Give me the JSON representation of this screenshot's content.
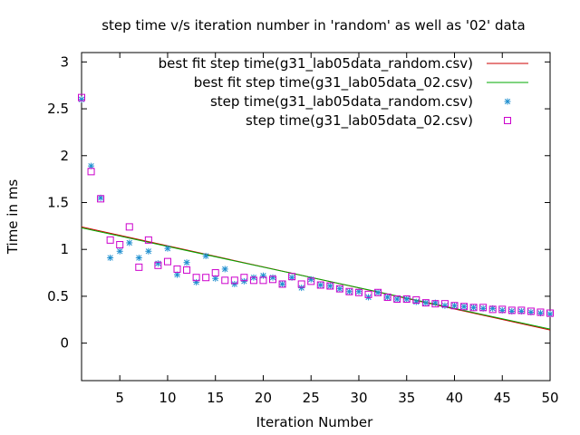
{
  "chart_data": {
    "type": "scatter",
    "title": "step time v/s iteration number in 'random' as well as '02' data",
    "xlabel": "Iteration Number",
    "ylabel": "Time in ms",
    "xlim": [
      1,
      50
    ],
    "ylim": [
      -0.4,
      3.1
    ],
    "xticks": [
      5,
      10,
      15,
      20,
      25,
      30,
      35,
      40,
      45,
      50
    ],
    "yticks": [
      0,
      0.5,
      1,
      1.5,
      2,
      2.5,
      3
    ],
    "xtick_labels": [
      "5",
      "10",
      "15",
      "20",
      "25",
      "30",
      "35",
      "40",
      "45",
      "50"
    ],
    "ytick_labels": [
      "0",
      "0.5",
      "1",
      "1.5",
      "2",
      "2.5",
      "3"
    ],
    "grid": false,
    "legend_position": "top-right",
    "series": [
      {
        "name": "best fit step time(g31_lab05data_random.csv)",
        "kind": "line",
        "color": "#cc0000",
        "x": [
          1,
          50
        ],
        "y": [
          1.24,
          0.14
        ]
      },
      {
        "name": "best fit step time(g31_lab05data_02.csv)",
        "kind": "line",
        "color": "#00aa00",
        "x": [
          1,
          50
        ],
        "y": [
          1.23,
          0.15
        ]
      },
      {
        "name": "step time(g31_lab05data_random.csv)",
        "kind": "points",
        "marker": "star",
        "color": "#1f8fcf",
        "x": [
          1,
          2,
          3,
          4,
          5,
          6,
          7,
          8,
          9,
          10,
          11,
          12,
          13,
          14,
          15,
          16,
          17,
          18,
          19,
          20,
          21,
          22,
          23,
          24,
          25,
          26,
          27,
          28,
          29,
          30,
          31,
          32,
          33,
          34,
          35,
          36,
          37,
          38,
          39,
          40,
          41,
          42,
          43,
          44,
          45,
          46,
          47,
          48,
          49,
          50
        ],
        "y": [
          2.6,
          1.89,
          1.55,
          0.91,
          0.98,
          1.07,
          0.91,
          0.98,
          0.85,
          1.01,
          0.73,
          0.86,
          0.65,
          0.93,
          0.69,
          0.79,
          0.63,
          0.66,
          0.7,
          0.72,
          0.7,
          0.63,
          0.7,
          0.59,
          0.68,
          0.62,
          0.61,
          0.58,
          0.55,
          0.55,
          0.49,
          0.54,
          0.49,
          0.47,
          0.47,
          0.44,
          0.43,
          0.43,
          0.4,
          0.4,
          0.39,
          0.38,
          0.37,
          0.37,
          0.35,
          0.34,
          0.34,
          0.33,
          0.32,
          0.31
        ]
      },
      {
        "name": "step time(g31_lab05data_02.csv)",
        "kind": "points",
        "marker": "square",
        "color": "#cc00cc",
        "x": [
          1,
          2,
          3,
          4,
          5,
          6,
          7,
          8,
          9,
          10,
          11,
          12,
          13,
          14,
          15,
          16,
          17,
          18,
          19,
          20,
          21,
          22,
          23,
          24,
          25,
          26,
          27,
          28,
          29,
          30,
          31,
          32,
          33,
          34,
          35,
          36,
          37,
          38,
          39,
          40,
          41,
          42,
          43,
          44,
          45,
          46,
          47,
          48,
          49,
          50
        ],
        "y": [
          2.62,
          1.83,
          1.54,
          1.1,
          1.05,
          1.24,
          0.81,
          1.1,
          0.83,
          0.87,
          0.79,
          0.78,
          0.7,
          0.7,
          0.75,
          0.67,
          0.67,
          0.7,
          0.67,
          0.67,
          0.68,
          0.63,
          0.71,
          0.63,
          0.66,
          0.62,
          0.61,
          0.58,
          0.55,
          0.54,
          0.52,
          0.54,
          0.49,
          0.47,
          0.47,
          0.46,
          0.43,
          0.42,
          0.42,
          0.4,
          0.39,
          0.38,
          0.38,
          0.36,
          0.36,
          0.35,
          0.35,
          0.34,
          0.33,
          0.32
        ]
      }
    ]
  }
}
